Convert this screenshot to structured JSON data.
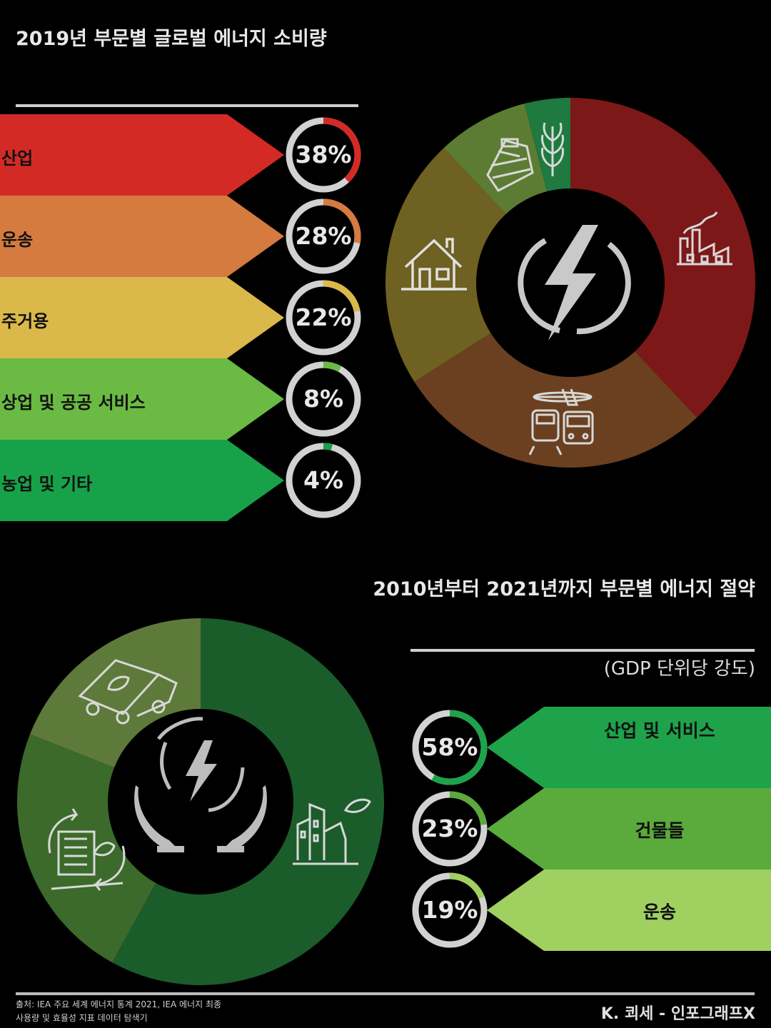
{
  "chart_data": [
    {
      "type": "pie",
      "title": "2019년 부문별 글로벌 에너지 소비량",
      "categories": [
        "산업",
        "운송",
        "주거용",
        "상업 및 공공 서비스",
        "농업 및 기타"
      ],
      "values": [
        38,
        28,
        22,
        8,
        4
      ],
      "value_labels": [
        "38%",
        "28%",
        "22%",
        "8%",
        "4%"
      ],
      "colors": [
        "#d42a26",
        "#d57b3f",
        "#dbb84a",
        "#6aba43",
        "#17a24a"
      ],
      "donut_colors": [
        "#7d1818",
        "#6a4020",
        "#6e6121",
        "#5c7c33",
        "#1e7a3e"
      ],
      "icons": [
        "factory-icon",
        "transport-icon",
        "house-icon",
        "mall-icon",
        "wheat-icon"
      ],
      "center_icon": "lightning-icon"
    },
    {
      "type": "pie",
      "title": "2010년부터 2021년까지 부문별 에너지 절약",
      "subtitle": "(GDP 단위당 강도)",
      "categories": [
        "산업 및 서비스",
        "건물들",
        "운송"
      ],
      "values": [
        58,
        23,
        19
      ],
      "value_labels": [
        "58%",
        "23%",
        "19%"
      ],
      "colors": [
        "#1ea24a",
        "#5aaa3c",
        "#9fd060"
      ],
      "donut_colors": [
        "#1b5c2b",
        "#3b6a2a",
        "#5e7a3a"
      ],
      "icons": [
        "green-city-icon",
        "recycling-building-icon",
        "eco-truck-icon"
      ],
      "center_icon": "hands-energy-icon"
    }
  ],
  "footer": {
    "source_line1": "출처: IEA 주요 세계 에너지 통계 2021, IEA 에너지 최종",
    "source_line2": "사용량 및 효율성 지표 데이터 탐색기",
    "credit": "K. 쾨세 - 인포그래프X"
  }
}
